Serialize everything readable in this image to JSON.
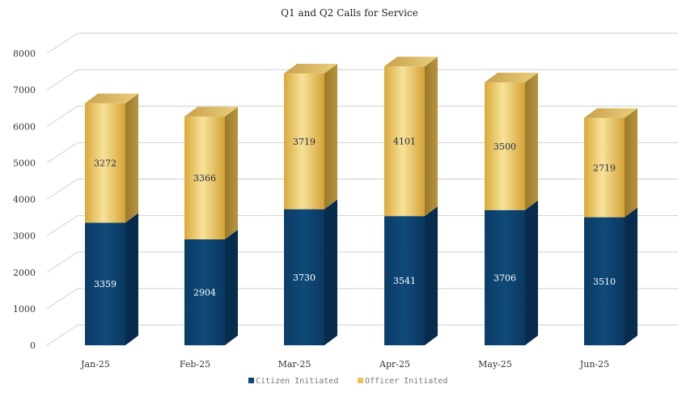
{
  "chart_data": {
    "type": "bar",
    "stacked": true,
    "title": "Q1 and Q2 Calls for Service",
    "categories": [
      "Jan-25",
      "Feb-25",
      "Mar-25",
      "Apr-25",
      "May-25",
      "Jun-25"
    ],
    "series": [
      {
        "name": "Citizen Initiated",
        "values": [
          3359,
          2904,
          3730,
          3541,
          3706,
          3510
        ],
        "color": "#0d4573"
      },
      {
        "name": "Officer Initiated",
        "values": [
          3272,
          3366,
          3719,
          4101,
          3500,
          2719
        ],
        "color": "#e8c355"
      }
    ],
    "yticks": [
      0,
      1000,
      2000,
      3000,
      4000,
      5000,
      6000,
      7000,
      8000
    ],
    "ylim": [
      0,
      8000
    ],
    "grid": true,
    "legend": "bottom",
    "xlabel": "",
    "ylabel": ""
  }
}
